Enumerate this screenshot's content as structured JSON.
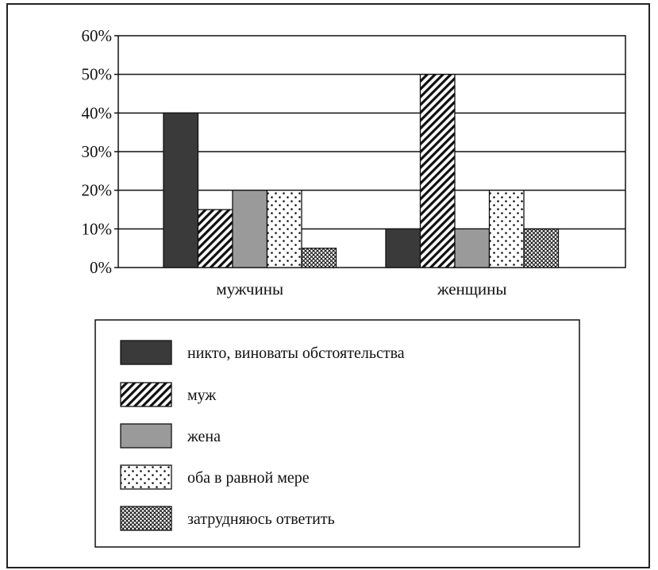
{
  "chart_data": {
    "type": "bar",
    "categories": [
      "мужчины",
      "женщины"
    ],
    "series": [
      {
        "name": "никто, виноваты обстоятельства",
        "values": [
          40,
          10
        ],
        "pattern": "solid-dark"
      },
      {
        "name": "муж",
        "values": [
          15,
          50
        ],
        "pattern": "diagonal-hatch"
      },
      {
        "name": "жена",
        "values": [
          20,
          10
        ],
        "pattern": "solid-gray"
      },
      {
        "name": "оба в равной мере",
        "values": [
          20,
          20
        ],
        "pattern": "dots"
      },
      {
        "name": "затрудняюсь ответить",
        "values": [
          5,
          10
        ],
        "pattern": "crosshatch"
      }
    ],
    "y_ticks": [
      "0%",
      "10%",
      "20%",
      "30%",
      "40%",
      "50%",
      "60%"
    ],
    "ylim": [
      0,
      60
    ],
    "grid": true,
    "legend_position": "bottom",
    "colors": {
      "dark": "#3a3a3a",
      "gray": "#9a9a9a",
      "line": "#111111"
    }
  }
}
